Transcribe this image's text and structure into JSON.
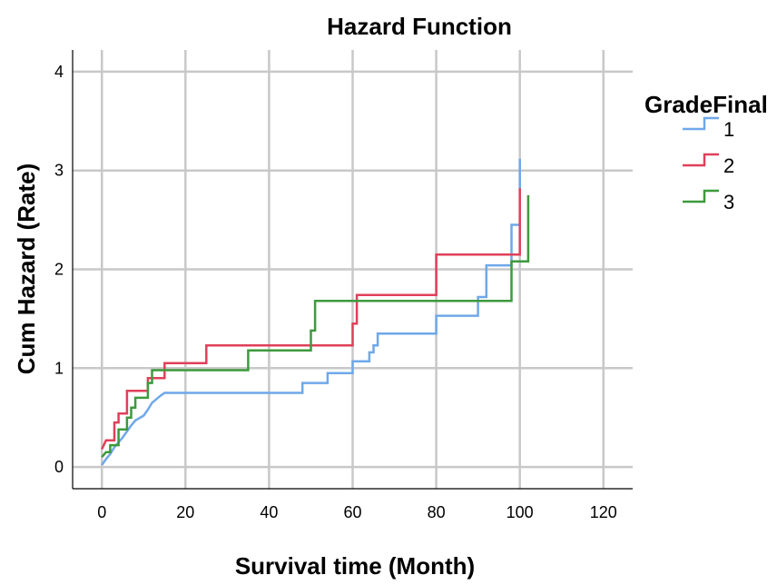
{
  "chart_data": {
    "type": "line",
    "title": "Hazard Function",
    "xlabel": "Survival time (Month)",
    "ylabel": "Cum Hazard (Rate)",
    "xlim": [
      -7,
      127
    ],
    "ylim": [
      -0.22,
      4.22
    ],
    "xticks": [
      0,
      20,
      40,
      60,
      80,
      100,
      120
    ],
    "yticks": [
      0,
      1,
      2,
      3,
      4
    ],
    "grid": true,
    "legend": {
      "title": "GradeFinal",
      "position": "right"
    },
    "series": [
      {
        "name": "1",
        "color": "#6fa8e8",
        "points": [
          [
            0,
            0.02
          ],
          [
            1,
            0.08
          ],
          [
            2,
            0.13
          ],
          [
            3,
            0.2
          ],
          [
            5,
            0.3
          ],
          [
            6,
            0.36
          ],
          [
            7,
            0.42
          ],
          [
            8,
            0.47
          ],
          [
            10,
            0.52
          ],
          [
            11,
            0.58
          ],
          [
            12,
            0.65
          ],
          [
            14,
            0.72
          ],
          [
            15,
            0.75
          ],
          [
            48,
            0.75
          ],
          [
            48,
            0.85
          ],
          [
            54,
            0.85
          ],
          [
            54,
            0.95
          ],
          [
            60,
            0.95
          ],
          [
            60,
            1.07
          ],
          [
            64,
            1.07
          ],
          [
            64,
            1.16
          ],
          [
            65,
            1.16
          ],
          [
            65,
            1.23
          ],
          [
            66,
            1.23
          ],
          [
            66,
            1.35
          ],
          [
            80,
            1.35
          ],
          [
            80,
            1.53
          ],
          [
            90,
            1.53
          ],
          [
            90,
            1.72
          ],
          [
            92,
            1.72
          ],
          [
            92,
            2.04
          ],
          [
            98,
            2.04
          ],
          [
            98,
            2.45
          ],
          [
            100,
            2.45
          ],
          [
            100,
            3.12
          ],
          [
            100,
            2.8
          ]
        ]
      },
      {
        "name": "2",
        "color": "#e0405a",
        "points": [
          [
            0,
            0.18
          ],
          [
            1,
            0.27
          ],
          [
            3,
            0.27
          ],
          [
            3,
            0.45
          ],
          [
            4,
            0.45
          ],
          [
            4,
            0.54
          ],
          [
            6,
            0.54
          ],
          [
            6,
            0.77
          ],
          [
            11,
            0.77
          ],
          [
            11,
            0.9
          ],
          [
            15,
            0.9
          ],
          [
            15,
            1.05
          ],
          [
            25,
            1.05
          ],
          [
            25,
            1.23
          ],
          [
            60,
            1.23
          ],
          [
            60,
            1.45
          ],
          [
            61,
            1.45
          ],
          [
            61,
            1.74
          ],
          [
            80,
            1.74
          ],
          [
            80,
            2.15
          ],
          [
            100,
            2.15
          ],
          [
            100,
            2.82
          ]
        ]
      },
      {
        "name": "3",
        "color": "#3d9a3d",
        "points": [
          [
            0,
            0.1
          ],
          [
            1,
            0.15
          ],
          [
            2,
            0.15
          ],
          [
            2,
            0.22
          ],
          [
            4,
            0.22
          ],
          [
            4,
            0.38
          ],
          [
            6,
            0.38
          ],
          [
            6,
            0.5
          ],
          [
            7,
            0.5
          ],
          [
            7,
            0.6
          ],
          [
            8,
            0.6
          ],
          [
            8,
            0.7
          ],
          [
            11,
            0.7
          ],
          [
            11,
            0.85
          ],
          [
            12,
            0.85
          ],
          [
            12,
            0.98
          ],
          [
            35,
            0.98
          ],
          [
            35,
            1.18
          ],
          [
            50,
            1.18
          ],
          [
            50,
            1.38
          ],
          [
            51,
            1.38
          ],
          [
            51,
            1.68
          ],
          [
            98,
            1.68
          ],
          [
            98,
            2.08
          ],
          [
            102,
            2.08
          ],
          [
            102,
            2.75
          ]
        ]
      }
    ]
  }
}
